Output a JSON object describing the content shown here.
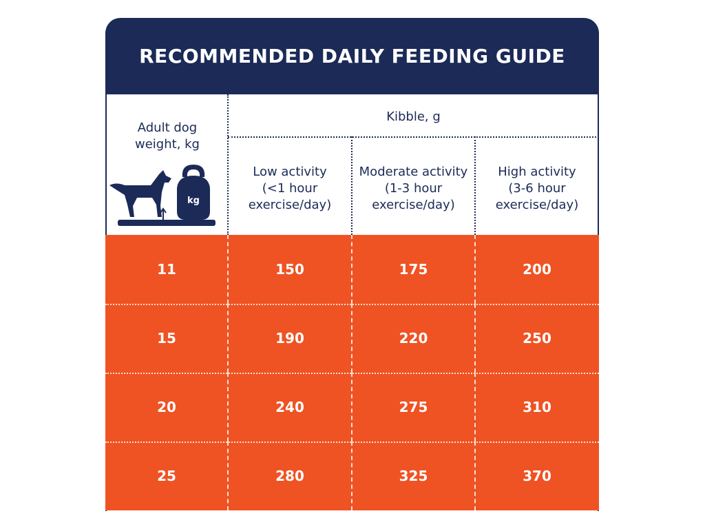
{
  "title": "RECOMMENDED DAILY FEEDING GUIDE",
  "headers": {
    "weight": "Adult dog weight, kg",
    "kibble": "Kibble, g",
    "low": {
      "line1": "Low activity",
      "line2": "(<1 hour",
      "line3": "exercise/day)"
    },
    "moderate": {
      "line1": "Moderate activity",
      "line2": "(1-3 hour",
      "line3": "exercise/day)"
    },
    "high": {
      "line1": "High activity",
      "line2": "(3-6 hour",
      "line3": "exercise/day)"
    }
  },
  "icon_label": "kg",
  "rows": [
    [
      "11",
      "150",
      "175",
      "200"
    ],
    [
      "15",
      "190",
      "220",
      "250"
    ],
    [
      "20",
      "240",
      "275",
      "310"
    ],
    [
      "25",
      "280",
      "325",
      "370"
    ]
  ],
  "colors": {
    "navy": "#1b2a57",
    "orange": "#ef5323"
  }
}
